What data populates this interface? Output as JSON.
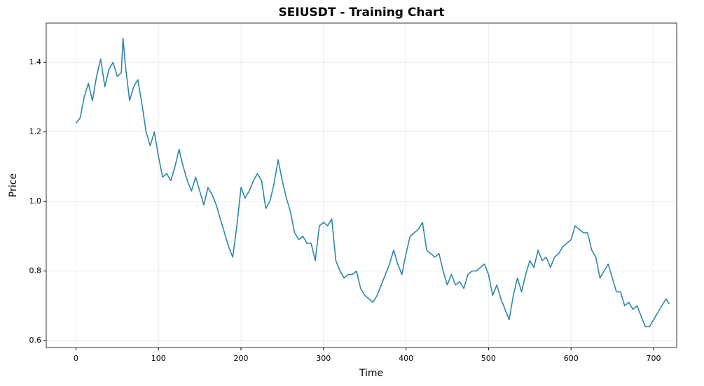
{
  "chart_data": {
    "type": "line",
    "title": "SEIUSDT - Training Chart",
    "x_label": "Time",
    "y_label": "Price",
    "x": [
      0,
      5,
      10,
      15,
      20,
      25,
      30,
      35,
      40,
      45,
      50,
      55,
      57,
      60,
      65,
      70,
      75,
      80,
      85,
      90,
      95,
      100,
      105,
      110,
      115,
      120,
      125,
      130,
      135,
      140,
      145,
      150,
      155,
      160,
      165,
      170,
      175,
      180,
      185,
      190,
      195,
      200,
      205,
      210,
      215,
      220,
      225,
      230,
      235,
      240,
      245,
      250,
      255,
      260,
      265,
      270,
      275,
      280,
      285,
      290,
      295,
      300,
      305,
      310,
      315,
      320,
      325,
      330,
      335,
      340,
      345,
      350,
      355,
      360,
      365,
      370,
      375,
      380,
      385,
      390,
      395,
      400,
      405,
      410,
      415,
      420,
      425,
      430,
      435,
      440,
      445,
      450,
      455,
      460,
      465,
      470,
      475,
      480,
      485,
      490,
      495,
      500,
      505,
      510,
      515,
      520,
      525,
      530,
      535,
      540,
      545,
      550,
      555,
      560,
      565,
      570,
      575,
      580,
      585,
      590,
      595,
      600,
      605,
      610,
      615,
      620,
      625,
      630,
      635,
      640,
      645,
      650,
      655,
      660,
      665,
      670,
      675,
      680,
      685,
      690,
      695,
      700,
      705,
      710,
      715,
      719
    ],
    "series": [
      {
        "name": "SEIUSDT",
        "color": "#2e86ab",
        "values": [
          1.225,
          1.24,
          1.3,
          1.34,
          1.29,
          1.36,
          1.41,
          1.33,
          1.38,
          1.4,
          1.36,
          1.37,
          1.47,
          1.39,
          1.29,
          1.33,
          1.35,
          1.28,
          1.2,
          1.16,
          1.2,
          1.13,
          1.07,
          1.08,
          1.06,
          1.1,
          1.15,
          1.1,
          1.06,
          1.03,
          1.07,
          1.03,
          0.99,
          1.04,
          1.02,
          0.99,
          0.95,
          0.91,
          0.87,
          0.84,
          0.93,
          1.04,
          1.01,
          1.03,
          1.06,
          1.08,
          1.06,
          0.98,
          1.0,
          1.05,
          1.12,
          1.06,
          1.01,
          0.97,
          0.91,
          0.89,
          0.9,
          0.88,
          0.88,
          0.83,
          0.93,
          0.94,
          0.93,
          0.95,
          0.83,
          0.8,
          0.78,
          0.79,
          0.79,
          0.8,
          0.75,
          0.73,
          0.72,
          0.71,
          0.73,
          0.76,
          0.79,
          0.82,
          0.86,
          0.82,
          0.79,
          0.85,
          0.9,
          0.91,
          0.92,
          0.94,
          0.86,
          0.85,
          0.84,
          0.85,
          0.8,
          0.76,
          0.79,
          0.76,
          0.77,
          0.75,
          0.79,
          0.8,
          0.8,
          0.81,
          0.82,
          0.79,
          0.73,
          0.76,
          0.72,
          0.69,
          0.66,
          0.73,
          0.78,
          0.74,
          0.79,
          0.83,
          0.81,
          0.86,
          0.83,
          0.84,
          0.81,
          0.84,
          0.85,
          0.87,
          0.88,
          0.89,
          0.93,
          0.92,
          0.91,
          0.91,
          0.86,
          0.84,
          0.78,
          0.8,
          0.82,
          0.78,
          0.74,
          0.74,
          0.7,
          0.71,
          0.69,
          0.7,
          0.67,
          0.64,
          0.64,
          0.66,
          0.68,
          0.7,
          0.72,
          0.705
        ]
      }
    ],
    "xlim": [
      -36,
      728
    ],
    "ylim": [
      0.58,
      1.513
    ],
    "xticks": [
      0,
      100,
      200,
      300,
      400,
      500,
      600,
      700
    ],
    "yticks": [
      {
        "value": 0.6,
        "label": "0.6"
      },
      {
        "value": 0.8,
        "label": "0.8"
      },
      {
        "value": 1.0,
        "label": "1.0"
      },
      {
        "value": 1.2,
        "label": "1.2"
      },
      {
        "value": 1.4,
        "label": "1.4"
      }
    ],
    "grid": true
  }
}
